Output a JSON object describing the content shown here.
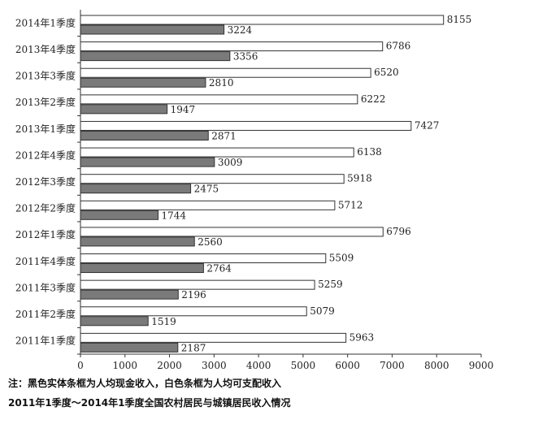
{
  "chart_data": {
    "type": "bar",
    "orientation": "horizontal",
    "categories": [
      "2014年1季度",
      "2013年4季度",
      "2013年3季度",
      "2013年2季度",
      "2013年1季度",
      "2012年4季度",
      "2012年3季度",
      "2012年2季度",
      "2012年1季度",
      "2011年4季度",
      "2011年3季度",
      "2011年2季度",
      "2011年1季度"
    ],
    "series": [
      {
        "values": [
          8155,
          6786,
          6520,
          6222,
          7427,
          6138,
          5918,
          5712,
          6796,
          5509,
          5259,
          5079,
          5963
        ],
        "color": "#ffffff"
      },
      {
        "values": [
          3224,
          3356,
          2810,
          1947,
          2871,
          3009,
          2475,
          1744,
          2560,
          2764,
          2196,
          1519,
          2187
        ],
        "color": "#7a7a7a"
      }
    ],
    "xlim": [
      0,
      9000
    ],
    "xticks": [
      0,
      1000,
      2000,
      3000,
      4000,
      5000,
      6000,
      7000,
      8000,
      9000
    ],
    "grid": false,
    "legend": "none"
  },
  "notes": {
    "line1": "注：黑色实体条框为人均现金收入，白色条框为人均可支配收入",
    "line2": "2011年1季度～2014年1季度全国农村居民与城镇居民收入情况"
  }
}
